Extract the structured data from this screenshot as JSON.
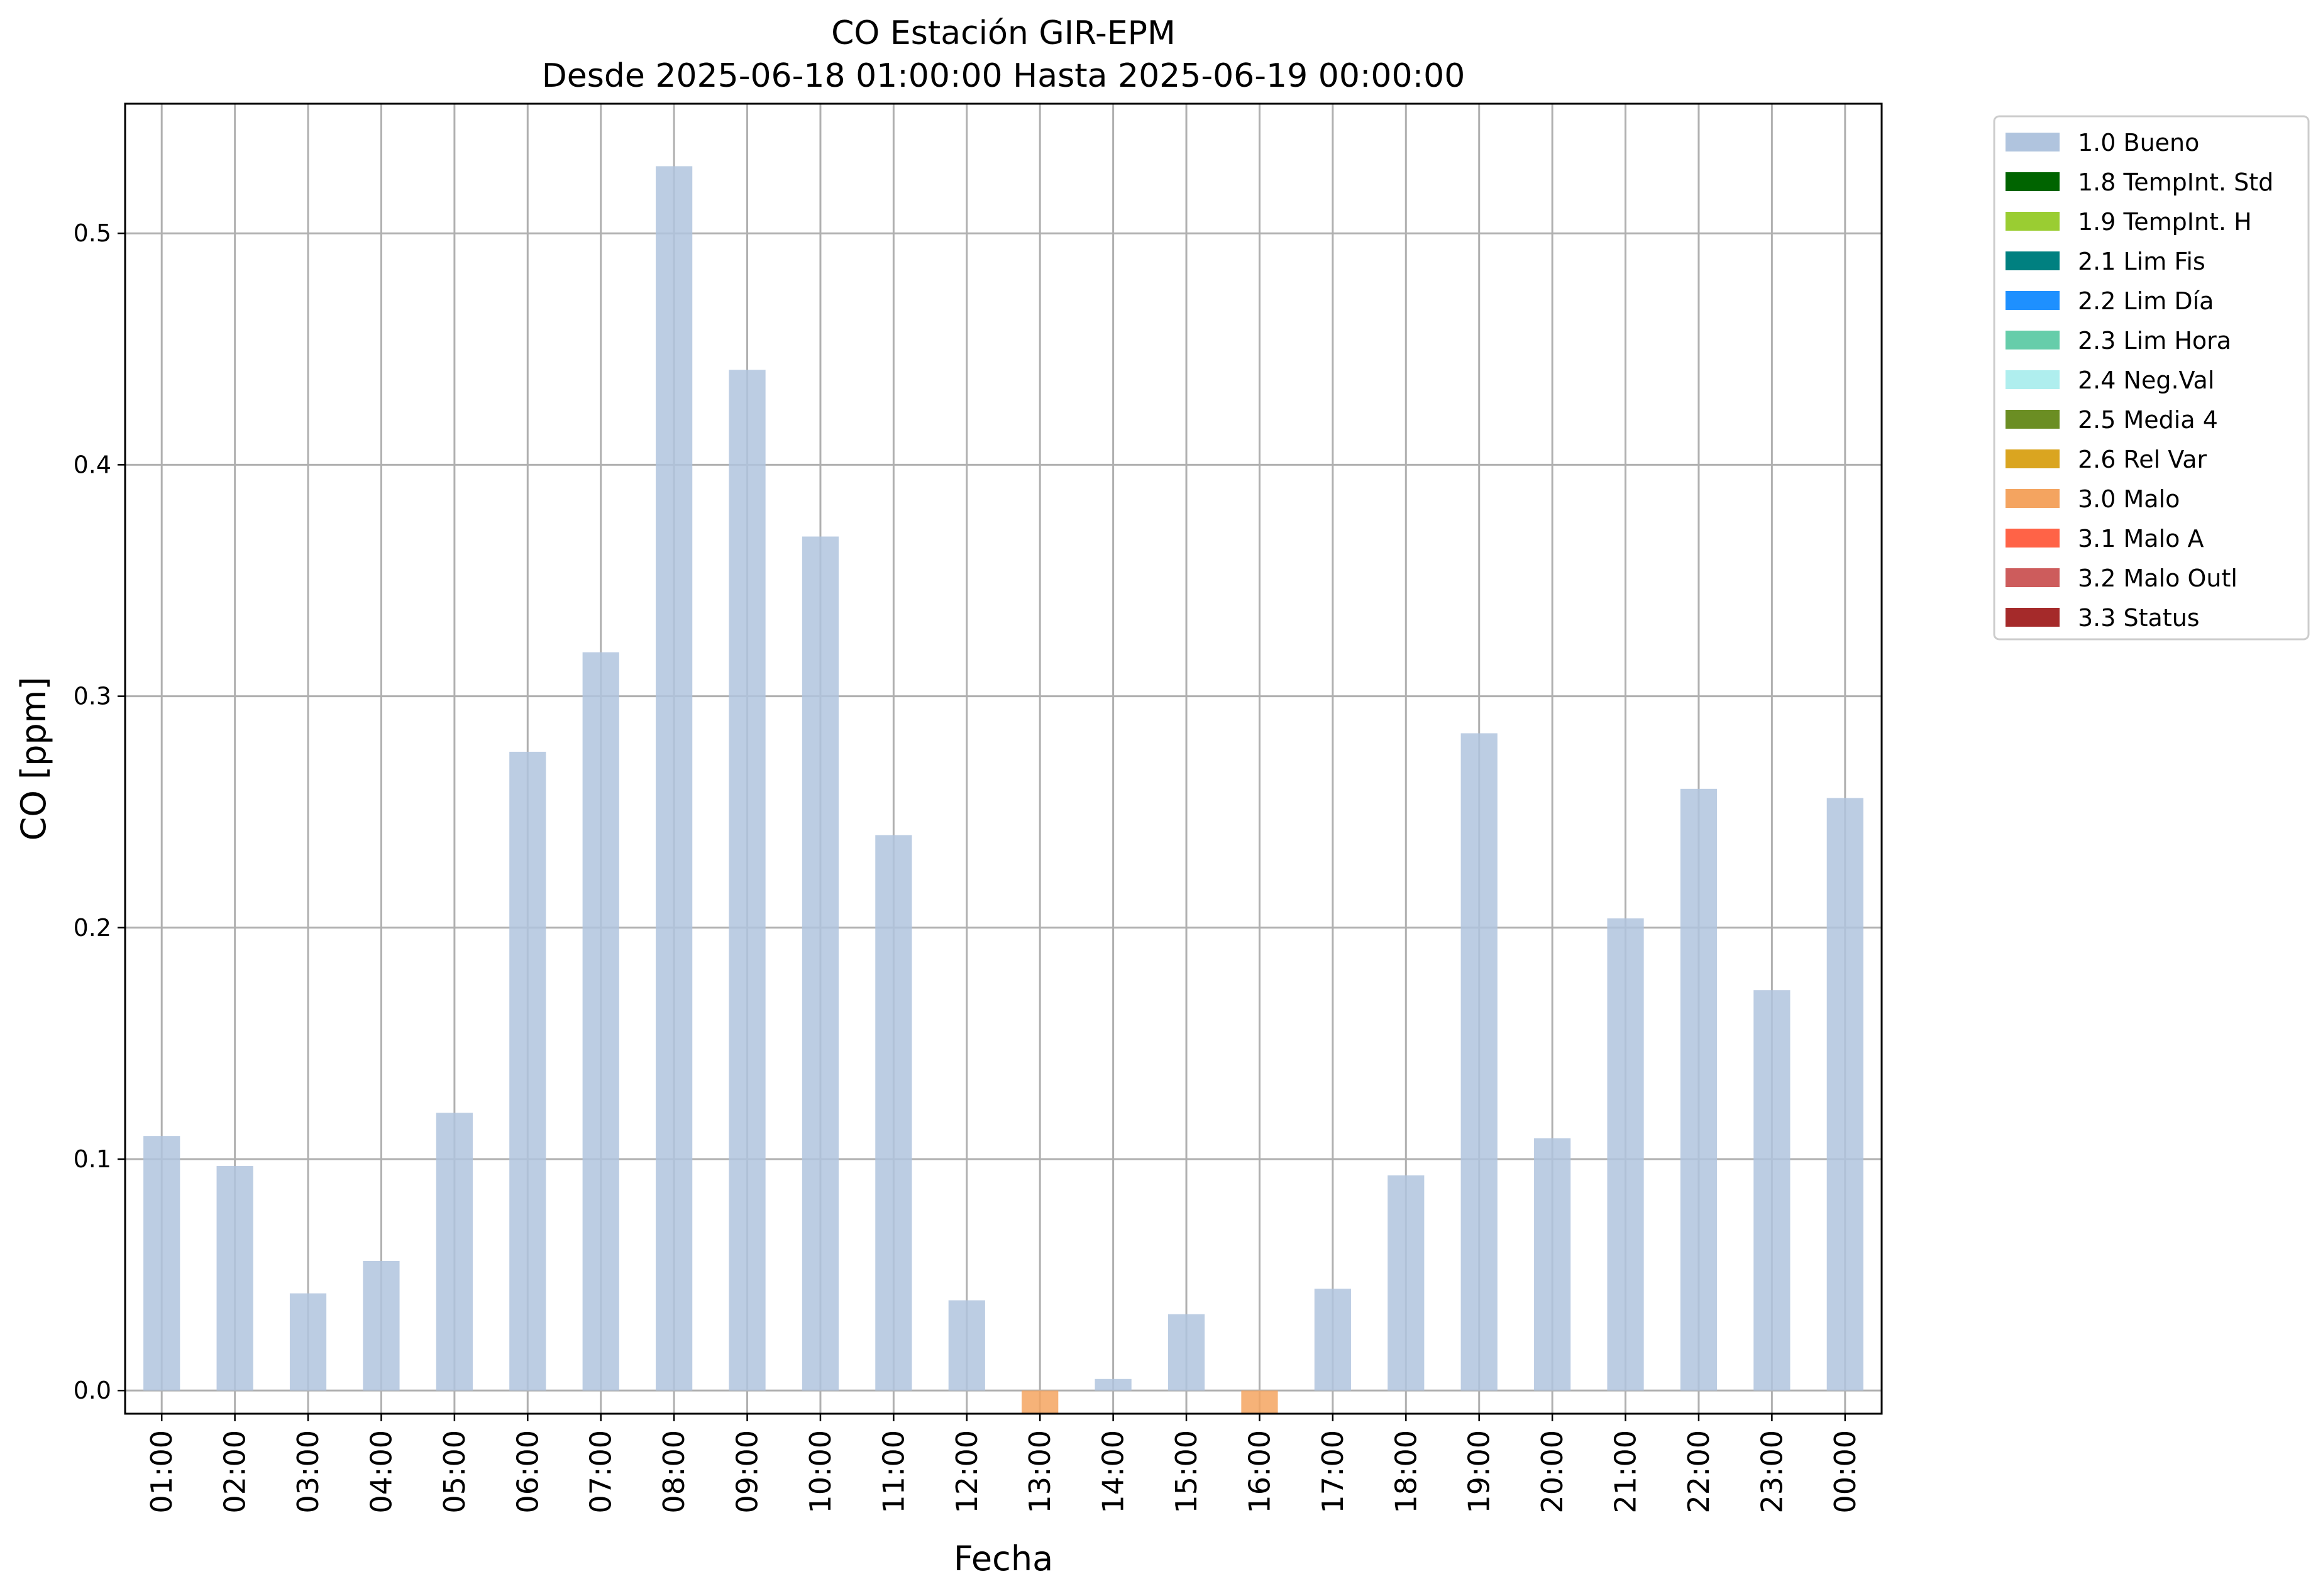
{
  "chart_data": {
    "type": "bar",
    "title": "CO Estación GIR-EPM",
    "subtitle": "Desde 2025-06-18 01:00:00 Hasta 2025-06-19 00:00:00",
    "xlabel": "Fecha",
    "ylabel": "CO [ppm]",
    "ylim": [
      -0.01,
      0.556
    ],
    "yticks": [
      0.0,
      0.1,
      0.2,
      0.3,
      0.4,
      0.5
    ],
    "ytick_labels": [
      "0.0",
      "0.1",
      "0.2",
      "0.3",
      "0.4",
      "0.5"
    ],
    "grid": true,
    "legend_position": "outside-top-right",
    "categories": [
      "01:00",
      "02:00",
      "03:00",
      "04:00",
      "05:00",
      "06:00",
      "07:00",
      "08:00",
      "09:00",
      "10:00",
      "11:00",
      "12:00",
      "13:00",
      "14:00",
      "15:00",
      "16:00",
      "17:00",
      "18:00",
      "19:00",
      "20:00",
      "21:00",
      "22:00",
      "23:00",
      "00:00"
    ],
    "values": [
      0.11,
      0.097,
      0.042,
      0.056,
      0.12,
      0.276,
      0.319,
      0.529,
      0.441,
      0.369,
      0.24,
      0.039,
      -0.01,
      0.005,
      0.033,
      -0.01,
      0.044,
      0.093,
      0.284,
      0.109,
      0.204,
      0.26,
      0.173,
      0.256
    ],
    "value_flags": [
      "1.0 Bueno",
      "1.0 Bueno",
      "1.0 Bueno",
      "1.0 Bueno",
      "1.0 Bueno",
      "1.0 Bueno",
      "1.0 Bueno",
      "1.0 Bueno",
      "1.0 Bueno",
      "1.0 Bueno",
      "1.0 Bueno",
      "1.0 Bueno",
      "3.0 Malo",
      "1.0 Bueno",
      "1.0 Bueno",
      "3.0 Malo",
      "1.0 Bueno",
      "1.0 Bueno",
      "1.0 Bueno",
      "1.0 Bueno",
      "1.0 Bueno",
      "1.0 Bueno",
      "1.0 Bueno",
      "1.0 Bueno"
    ],
    "legend": [
      {
        "label": "1.0 Bueno",
        "color": "#b0c4de"
      },
      {
        "label": "1.8 TempInt. Std",
        "color": "#006400"
      },
      {
        "label": "1.9 TempInt. H",
        "color": "#9acd32"
      },
      {
        "label": "2.1 Lim Fis",
        "color": "#008080"
      },
      {
        "label": "2.2 Lim Día",
        "color": "#1e90ff"
      },
      {
        "label": "2.3 Lim Hora",
        "color": "#66cdaa"
      },
      {
        "label": "2.4 Neg.Val",
        "color": "#afeeee"
      },
      {
        "label": "2.5 Media 4",
        "color": "#6b8e23"
      },
      {
        "label": "2.6 Rel Var",
        "color": "#daa520"
      },
      {
        "label": "3.0 Malo",
        "color": "#f4a460"
      },
      {
        "label": "3.1 Malo A",
        "color": "#ff6347"
      },
      {
        "label": "3.2 Malo Outl",
        "color": "#cd5c5c"
      },
      {
        "label": "3.3 Status",
        "color": "#a52a2a"
      }
    ]
  }
}
